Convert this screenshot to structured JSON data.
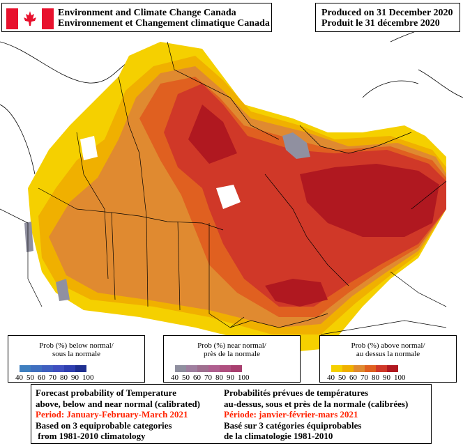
{
  "header": {
    "agency_en": "Environment and Climate Change Canada",
    "agency_fr": "Environnement et Changement climatique Canada",
    "produced_en": "Produced on 31 December 2020",
    "produced_fr": "Produit le 31 décembre 2020"
  },
  "legends": [
    {
      "title_en": "Prob (%) below normal/",
      "title_fr": "sous la normale",
      "ticks": [
        "40",
        "50",
        "60",
        "70",
        "80",
        "90",
        "100"
      ],
      "colors": [
        "#3f7fbf",
        "#3f6fbf",
        "#3f5fbf",
        "#3f4fbf",
        "#2f3fb0",
        "#1f2f90"
      ]
    },
    {
      "title_en": "Prob (%) near normal/",
      "title_fr": "près de la normale",
      "ticks": [
        "40",
        "50",
        "60",
        "70",
        "80",
        "90",
        "100"
      ],
      "colors": [
        "#8f8f9f",
        "#9f7f9f",
        "#9f6f8f",
        "#af5f8f",
        "#af4f7f",
        "#a83f6f"
      ]
    },
    {
      "title_en": "Prob (%) above normal/",
      "title_fr": "au dessus la normale",
      "ticks": [
        "40",
        "50",
        "60",
        "70",
        "80",
        "90",
        "100"
      ],
      "colors": [
        "#f5d000",
        "#f0b000",
        "#e08a30",
        "#e06020",
        "#d03828",
        "#b01820"
      ]
    }
  ],
  "footer": {
    "en": {
      "line1": "Forecast probability of Temperature",
      "line2": "above, below and near normal (calibrated)",
      "period": "Period: January-February-March 2021",
      "line4": "Based on 3 equiprobable categories",
      "line5": " from 1981-2010 climatology"
    },
    "fr": {
      "line1": "Probabilités prévues de températures",
      "line2": "au-dessus, sous et près de la normale (calibrées)",
      "period": "Période: janvier-février-mars 2021",
      "line4": "Basé sur 3 catégories équiprobables",
      "line5": "de la climatologie 1981-2010"
    }
  },
  "colors": {
    "p40": "#f5d000",
    "p50": "#f0b000",
    "p60": "#e08a30",
    "p70": "#e06020",
    "p80": "#d03828",
    "p90": "#b01820",
    "near": "#9090a0",
    "land_normal": "#ffffff"
  }
}
